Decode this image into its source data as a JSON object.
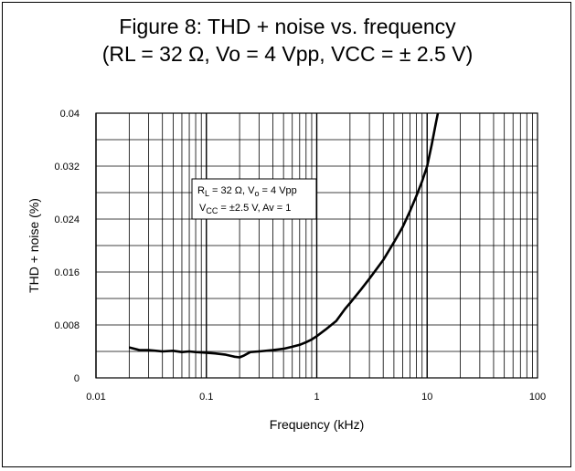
{
  "chart_data": {
    "type": "line",
    "title_line1": "Figure 8: THD + noise vs. frequency",
    "title_line2": "(RL = 32 Ω, Vo = 4 Vpp, VCC = ± 2.5 V)",
    "xlabel": "Frequency (kHz)",
    "ylabel": "THD + noise (%)",
    "x_scale": "log",
    "xlim": [
      0.01,
      100
    ],
    "ylim": [
      0,
      0.04
    ],
    "x_ticks": [
      "0.01",
      "0.1",
      "1",
      "10",
      "100"
    ],
    "y_ticks": [
      "0",
      "0.008",
      "0.016",
      "0.024",
      "0.032",
      "0.04"
    ],
    "y_tick_values": [
      0,
      0.008,
      0.016,
      0.024,
      0.032,
      0.04
    ],
    "grid": true,
    "annotation": {
      "line1": {
        "r": "R",
        "r_sub": "L",
        "mid": " = 32 Ω, V",
        "v_sub": "o",
        "tail": " = 4 Vpp"
      },
      "line2": {
        "v": "V",
        "v_sub": "CC",
        "tail": " = ±2.5 V, Av = 1"
      }
    },
    "series": [
      {
        "color": "#000000",
        "x": [
          0.02,
          0.025,
          0.03,
          0.035,
          0.04,
          0.05,
          0.06,
          0.07,
          0.08,
          0.1,
          0.12,
          0.15,
          0.18,
          0.2,
          0.22,
          0.25,
          0.3,
          0.4,
          0.5,
          0.6,
          0.7,
          0.8,
          0.9,
          1.0,
          1.2,
          1.5,
          1.8,
          2.0,
          2.5,
          3.0,
          4.0,
          5.0,
          6.0,
          7.0,
          8.0,
          9.0,
          10.0,
          11.0,
          12.0,
          12.5
        ],
        "y": [
          0.0046,
          0.0042,
          0.0042,
          0.0041,
          0.004,
          0.0041,
          0.0039,
          0.004,
          0.0039,
          0.0038,
          0.0037,
          0.0035,
          0.0032,
          0.0031,
          0.0034,
          0.0039,
          0.004,
          0.0042,
          0.0044,
          0.0047,
          0.005,
          0.0054,
          0.0058,
          0.0063,
          0.0073,
          0.0086,
          0.0104,
          0.0113,
          0.0133,
          0.015,
          0.0178,
          0.0205,
          0.0228,
          0.0252,
          0.0275,
          0.0297,
          0.032,
          0.0352,
          0.0385,
          0.04
        ]
      }
    ]
  }
}
